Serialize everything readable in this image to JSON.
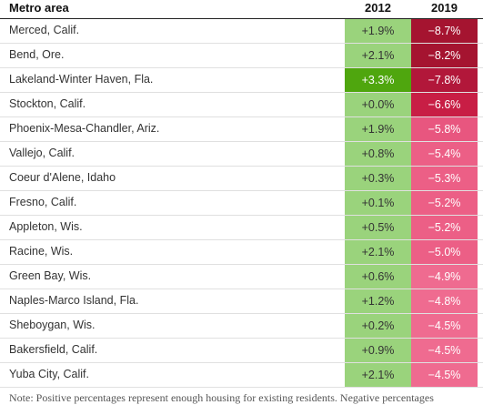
{
  "headers": {
    "metro": "Metro area",
    "y2012": "2012",
    "y2019": "2019"
  },
  "rows": [
    {
      "metro": "Merced, Calif.",
      "v2012": "+1.9%",
      "v2019": "−8.7%",
      "c2012": "#9ad37c",
      "c2019": "#a51430",
      "t2019": "#ffffff"
    },
    {
      "metro": "Bend, Ore.",
      "v2012": "+2.1%",
      "v2019": "−8.2%",
      "c2012": "#9ad37c",
      "c2019": "#a51430",
      "t2019": "#ffffff"
    },
    {
      "metro": "Lakeland-Winter Haven, Fla.",
      "v2012": "+3.3%",
      "v2019": "−7.8%",
      "c2012": "#4fa60e",
      "c2019": "#b2173a",
      "t2012": "#ffffff",
      "t2019": "#ffffff"
    },
    {
      "metro": "Stockton, Calif.",
      "v2012": "+0.0%",
      "v2019": "−6.6%",
      "c2012": "#9ad37c",
      "c2019": "#c81e45",
      "t2019": "#ffffff"
    },
    {
      "metro": "Phoenix-Mesa-Chandler, Ariz.",
      "v2012": "+1.9%",
      "v2019": "−5.8%",
      "c2012": "#9ad37c",
      "c2019": "#e8567f",
      "t2019": "#ffffff"
    },
    {
      "metro": "Vallejo, Calif.",
      "v2012": "+0.8%",
      "v2019": "−5.4%",
      "c2012": "#9ad37c",
      "c2019": "#ec5f86",
      "t2019": "#ffffff"
    },
    {
      "metro": "Coeur d'Alene, Idaho",
      "v2012": "+0.3%",
      "v2019": "−5.3%",
      "c2012": "#9ad37c",
      "c2019": "#ec5f86",
      "t2019": "#ffffff"
    },
    {
      "metro": "Fresno, Calif.",
      "v2012": "+0.1%",
      "v2019": "−5.2%",
      "c2012": "#9ad37c",
      "c2019": "#ec5f86",
      "t2019": "#ffffff"
    },
    {
      "metro": "Appleton, Wis.",
      "v2012": "+0.5%",
      "v2019": "−5.2%",
      "c2012": "#9ad37c",
      "c2019": "#ec5f86",
      "t2019": "#ffffff"
    },
    {
      "metro": "Racine, Wis.",
      "v2012": "+2.1%",
      "v2019": "−5.0%",
      "c2012": "#9ad37c",
      "c2019": "#ec5f86",
      "t2019": "#ffffff"
    },
    {
      "metro": "Green Bay, Wis.",
      "v2012": "+0.6%",
      "v2019": "−4.9%",
      "c2012": "#9ad37c",
      "c2019": "#ef6b90",
      "t2019": "#ffffff"
    },
    {
      "metro": "Naples-Marco Island, Fla.",
      "v2012": "+1.2%",
      "v2019": "−4.8%",
      "c2012": "#9ad37c",
      "c2019": "#ef6b90",
      "t2019": "#ffffff"
    },
    {
      "metro": "Sheboygan, Wis.",
      "v2012": "+0.2%",
      "v2019": "−4.5%",
      "c2012": "#9ad37c",
      "c2019": "#ef6b90",
      "t2019": "#ffffff"
    },
    {
      "metro": "Bakersfield, Calif.",
      "v2012": "+0.9%",
      "v2019": "−4.5%",
      "c2012": "#9ad37c",
      "c2019": "#ef6b90",
      "t2019": "#ffffff"
    },
    {
      "metro": "Yuba City, Calif.",
      "v2012": "+2.1%",
      "v2019": "−4.5%",
      "c2012": "#9ad37c",
      "c2019": "#ef6b90",
      "t2019": "#ffffff"
    }
  ],
  "note": "Note: Positive percentages represent enough housing for existing residents. Negative percentages"
}
